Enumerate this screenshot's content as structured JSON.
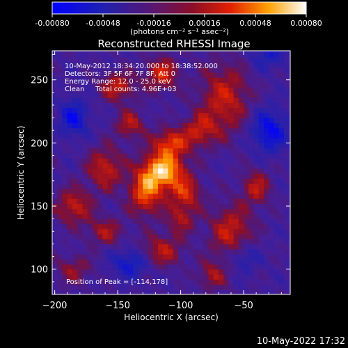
{
  "chart_data": {
    "type": "heatmap",
    "title": "Reconstructed RHESSI Image",
    "xlabel": "Heliocentric X (arcsec)",
    "ylabel": "Heliocentric Y (arcsec)",
    "xlim": [
      -202,
      -13
    ],
    "ylim": [
      80,
      273
    ],
    "x_ticks": [
      -200,
      -150,
      -100,
      -50
    ],
    "y_ticks": [
      100,
      150,
      200,
      250
    ],
    "colorbar": {
      "range": [
        -0.0008,
        0.0008
      ],
      "ticks": [
        "-0.00080",
        "-0.00048",
        "-0.00016",
        "0.00016",
        "0.00048",
        "0.00080"
      ],
      "unit_label": "(photons cm⁻² s⁻¹ asec⁻²)"
    },
    "annotations": [
      "10-May-2012 18:34:20.000 to 18:38:52.000",
      "Detectors: 3F 5F 6F 7F 8F, Att 0",
      "Energy Range: 12.0 - 25.0 keV",
      "Clean     Total counts: 4.96E+03"
    ],
    "peak_text": "Position of Peak = [-114,178]",
    "peak_position": [
      -114,
      178
    ],
    "blobs": [
      {
        "x": -114,
        "y": 178,
        "sx": 12,
        "sy": 10,
        "v": 0.00085
      },
      {
        "x": -108,
        "y": 200,
        "sx": 10,
        "sy": 8,
        "v": 0.00055
      },
      {
        "x": -128,
        "y": 160,
        "sx": 9,
        "sy": 12,
        "v": 0.0006
      },
      {
        "x": -96,
        "y": 160,
        "sx": 9,
        "sy": 9,
        "v": 0.00045
      },
      {
        "x": -160,
        "y": 180,
        "sx": 10,
        "sy": 12,
        "v": 0.00045
      },
      {
        "x": -140,
        "y": 215,
        "sx": 8,
        "sy": 8,
        "v": 0.0004
      },
      {
        "x": -150,
        "y": 245,
        "sx": 10,
        "sy": 8,
        "v": 0.00045
      },
      {
        "x": -115,
        "y": 255,
        "sx": 9,
        "sy": 9,
        "v": 0.0005
      },
      {
        "x": -65,
        "y": 235,
        "sx": 14,
        "sy": 20,
        "v": 0.00045
      },
      {
        "x": -85,
        "y": 210,
        "sx": 9,
        "sy": 9,
        "v": 0.0004
      },
      {
        "x": -185,
        "y": 150,
        "sx": 10,
        "sy": 10,
        "v": 0.00045
      },
      {
        "x": -160,
        "y": 130,
        "sx": 10,
        "sy": 8,
        "v": 0.00035
      },
      {
        "x": -115,
        "y": 115,
        "sx": 12,
        "sy": 9,
        "v": 0.0004
      },
      {
        "x": -60,
        "y": 130,
        "sx": 12,
        "sy": 15,
        "v": 0.00045
      },
      {
        "x": -40,
        "y": 165,
        "sx": 8,
        "sy": 10,
        "v": 0.0004
      },
      {
        "x": -75,
        "y": 95,
        "sx": 8,
        "sy": 8,
        "v": 0.00035
      },
      {
        "x": -185,
        "y": 100,
        "sx": 10,
        "sy": 8,
        "v": 0.0003
      },
      {
        "x": -100,
        "y": 140,
        "sx": 8,
        "sy": 8,
        "v": 0.00035
      },
      {
        "x": -185,
        "y": 220,
        "sx": 8,
        "sy": 10,
        "v": -0.00045
      },
      {
        "x": -30,
        "y": 210,
        "sx": 10,
        "sy": 12,
        "v": -0.0005
      },
      {
        "x": -140,
        "y": 105,
        "sx": 10,
        "sy": 8,
        "v": -0.0004
      },
      {
        "x": -50,
        "y": 110,
        "sx": 8,
        "sy": 8,
        "v": -0.0003
      },
      {
        "x": -30,
        "y": 270,
        "sx": 10,
        "sy": 8,
        "v": -0.0003
      }
    ]
  },
  "footer_date": "10-May-2022 17:32"
}
